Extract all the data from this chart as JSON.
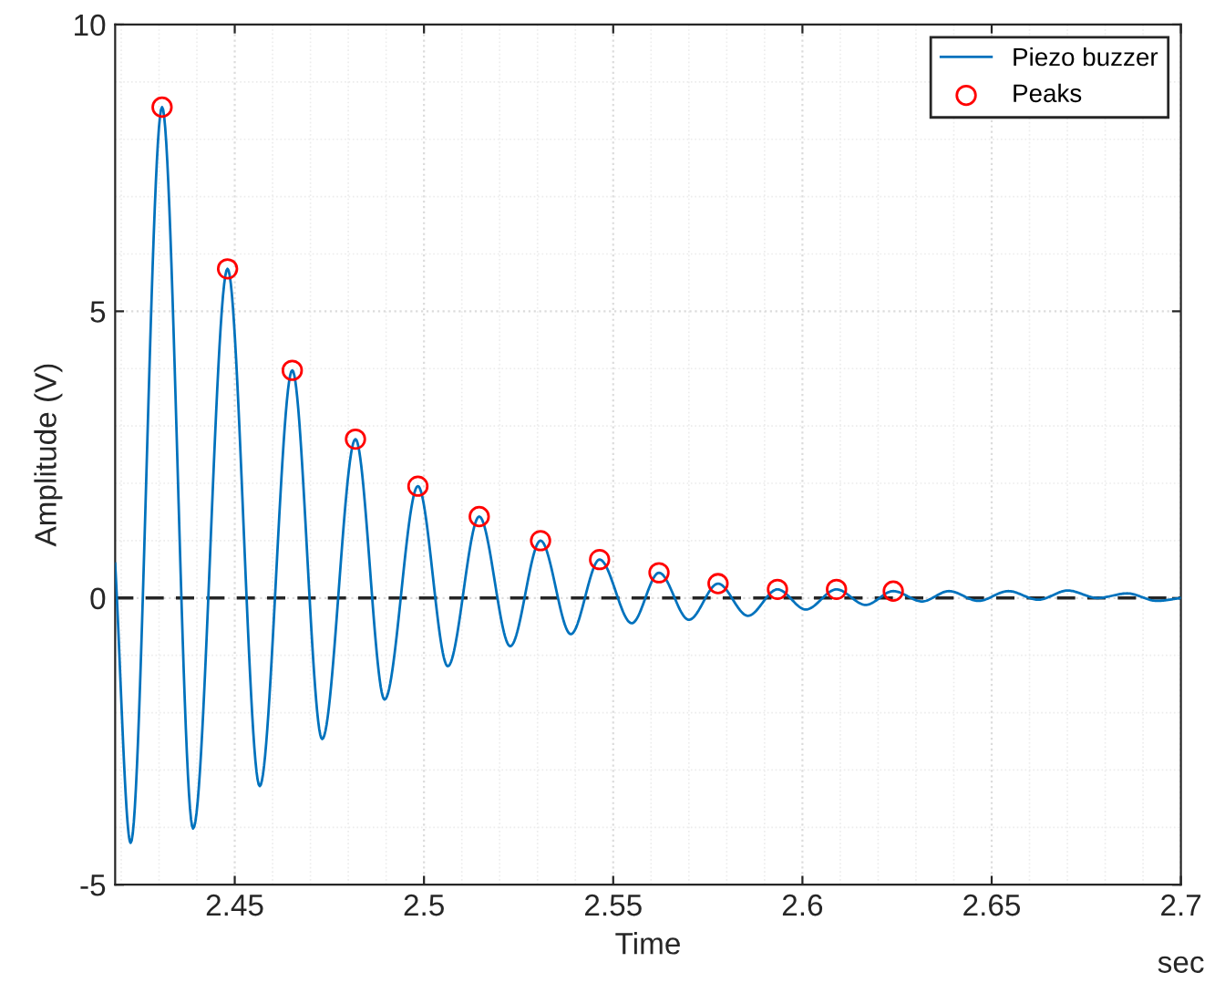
{
  "chart_data": {
    "type": "line",
    "xlabel": "Time",
    "ylabel": "Amplitude (V)",
    "annotations": [
      "sec"
    ],
    "xlim": [
      2.4184,
      2.7
    ],
    "ylim": [
      -5,
      10
    ],
    "xticks": [
      2.45,
      2.5,
      2.55,
      2.6,
      2.65,
      2.7
    ],
    "yticks": [
      -5,
      0,
      5,
      10
    ],
    "grid": true,
    "legend": "top right",
    "ref_lines": [
      {
        "axis": "y",
        "value": 0,
        "label": null,
        "color": "#262626",
        "line_style": "dashed"
      }
    ],
    "series": [
      {
        "name": "Piezo buzzer",
        "color": "#0072bd",
        "marker": "none",
        "line_style": "solid",
        "x": [
          2.4184,
          2.4225,
          2.4308,
          2.439,
          2.4481,
          2.4566,
          2.4652,
          2.4731,
          2.4819,
          2.4896,
          2.4984,
          2.5063,
          2.5146,
          2.5228,
          2.5308,
          2.5388,
          2.5464,
          2.5549,
          2.5621,
          2.57,
          2.5777,
          2.5856,
          2.5934,
          2.6009,
          2.609,
          2.6167,
          2.624,
          2.6316,
          2.6387,
          2.6465,
          2.6544,
          2.6623,
          2.6701,
          2.678,
          2.6858,
          2.6937,
          2.7
        ],
        "values": [
          0.6,
          -4.27,
          8.56,
          -4.02,
          5.74,
          -3.28,
          3.97,
          -2.46,
          2.77,
          -1.77,
          1.95,
          -1.19,
          1.42,
          -0.84,
          1.0,
          -0.63,
          0.67,
          -0.44,
          0.44,
          -0.38,
          0.25,
          -0.31,
          0.15,
          -0.2,
          0.15,
          -0.12,
          0.12,
          -0.06,
          0.12,
          -0.05,
          0.12,
          -0.03,
          0.13,
          0.0,
          0.08,
          -0.05,
          0.0
        ]
      },
      {
        "name": "Peaks",
        "type": "scatter",
        "color": "#ff0000",
        "marker": "circle",
        "x": [
          2.4308,
          2.4481,
          2.4652,
          2.4819,
          2.4984,
          2.5146,
          2.5308,
          2.5464,
          2.5621,
          2.5777,
          2.5934,
          2.609,
          2.624
        ],
        "values": [
          8.56,
          5.74,
          3.97,
          2.77,
          1.95,
          1.42,
          1.0,
          0.67,
          0.44,
          0.25,
          0.15,
          0.15,
          0.12
        ]
      }
    ]
  }
}
